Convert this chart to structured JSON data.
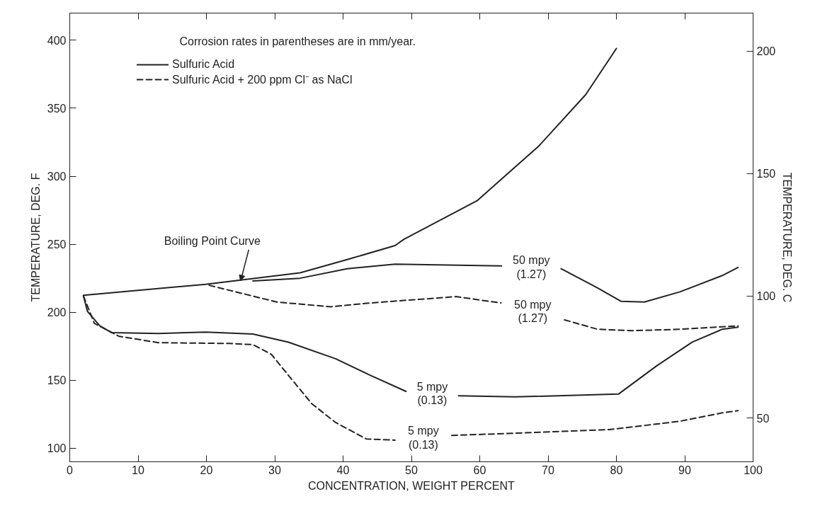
{
  "chart_data": {
    "type": "line",
    "xlabel": "CONCENTRATION, WEIGHT PERCENT",
    "ylabel": "TEMPERATURE, DEG. F",
    "y2label": "TEMPERATURE, DEG. C",
    "xlim": [
      0,
      100
    ],
    "xticks": [
      0,
      10,
      20,
      30,
      40,
      50,
      60,
      70,
      80,
      90,
      100
    ],
    "ylim": [
      90,
      420
    ],
    "yticks": [
      100,
      150,
      200,
      250,
      300,
      350,
      400
    ],
    "y2lim": [
      32.2,
      215.6
    ],
    "y2ticks": [
      50,
      100,
      150,
      200
    ],
    "grid": false,
    "legend": "top left",
    "marker": "none",
    "series": [
      {
        "color": "#222222",
        "line_style": "solid",
        "x": [
          2,
          19.9,
          33.7,
          40.6,
          47.6,
          48.9,
          59.6,
          68.6,
          75.5,
          80
        ],
        "values": [
          212.5,
          220.5,
          229,
          238.7,
          249,
          253.6,
          282,
          322,
          360,
          394
        ]
      },
      {
        "name": "Sulfuric Acid",
        "color": "#222222",
        "line_style": "solid",
        "x": [
          26.8,
          33.7,
          40.6,
          47.6,
          63.2,
          67.5,
          71.9,
          77.2,
          80.7,
          84.1,
          89.3,
          95.5,
          97.8
        ],
        "values": [
          223,
          225,
          232,
          235.4,
          234,
          null,
          232,
          218,
          208,
          207.5,
          215,
          227,
          233
        ]
      },
      {
        "name": "Sulfuric Acid + 200 ppm Cl⁻ as NaCl",
        "color": "#222222",
        "line_style": "dashed",
        "x": [
          20.4,
          30.3,
          38.2,
          44,
          47.9,
          52.7,
          56.5,
          63.1,
          67.7,
          72.4,
          77.2,
          82.4,
          89.3,
          97.8
        ],
        "values": [
          219.8,
          207.5,
          204,
          206.8,
          208.3,
          210,
          211.5,
          206.8,
          null,
          194.4,
          187.5,
          186.4,
          187.5,
          190
        ]
      },
      {
        "color": "#222222",
        "line_style": "solid",
        "x": [
          2,
          2.6,
          4.4,
          6.1,
          13,
          19.9,
          26.8,
          32,
          38.9,
          44,
          49.2,
          53,
          56.9,
          65.2,
          80.3,
          85.9,
          91.1,
          95.5,
          97.8
        ],
        "values": [
          212,
          200.5,
          190,
          185,
          184.4,
          185.4,
          184,
          178,
          165.8,
          153.6,
          141.8,
          null,
          138.5,
          137.7,
          139.8,
          160.6,
          178,
          187.5,
          189
        ]
      },
      {
        "color": "#222222",
        "line_style": "dashed",
        "x": [
          2,
          3.6,
          7.2,
          13,
          23.3,
          26.8,
          29.5,
          32,
          35.4,
          38.9,
          43.4,
          47.6,
          51.8,
          55.9,
          65.2,
          79,
          89.3,
          95.5,
          97.8
        ],
        "values": [
          212,
          191.8,
          182.3,
          177.6,
          177,
          176.2,
          169,
          153.6,
          132.8,
          118.9,
          106.8,
          105.9,
          null,
          109.4,
          111,
          113.7,
          119.8,
          126,
          127.6
        ]
      }
    ],
    "annotations": [
      "Corrosion rates in parentheses are in mm/year.",
      {
        "text": "Boiling Point Curve",
        "x": 25,
        "y": 222
      },
      "50 mpy\n(1.27)",
      "50 mpy\n(1.27)",
      "5 mpy\n(0.13)",
      "5 mpy\n(0.13)"
    ]
  }
}
